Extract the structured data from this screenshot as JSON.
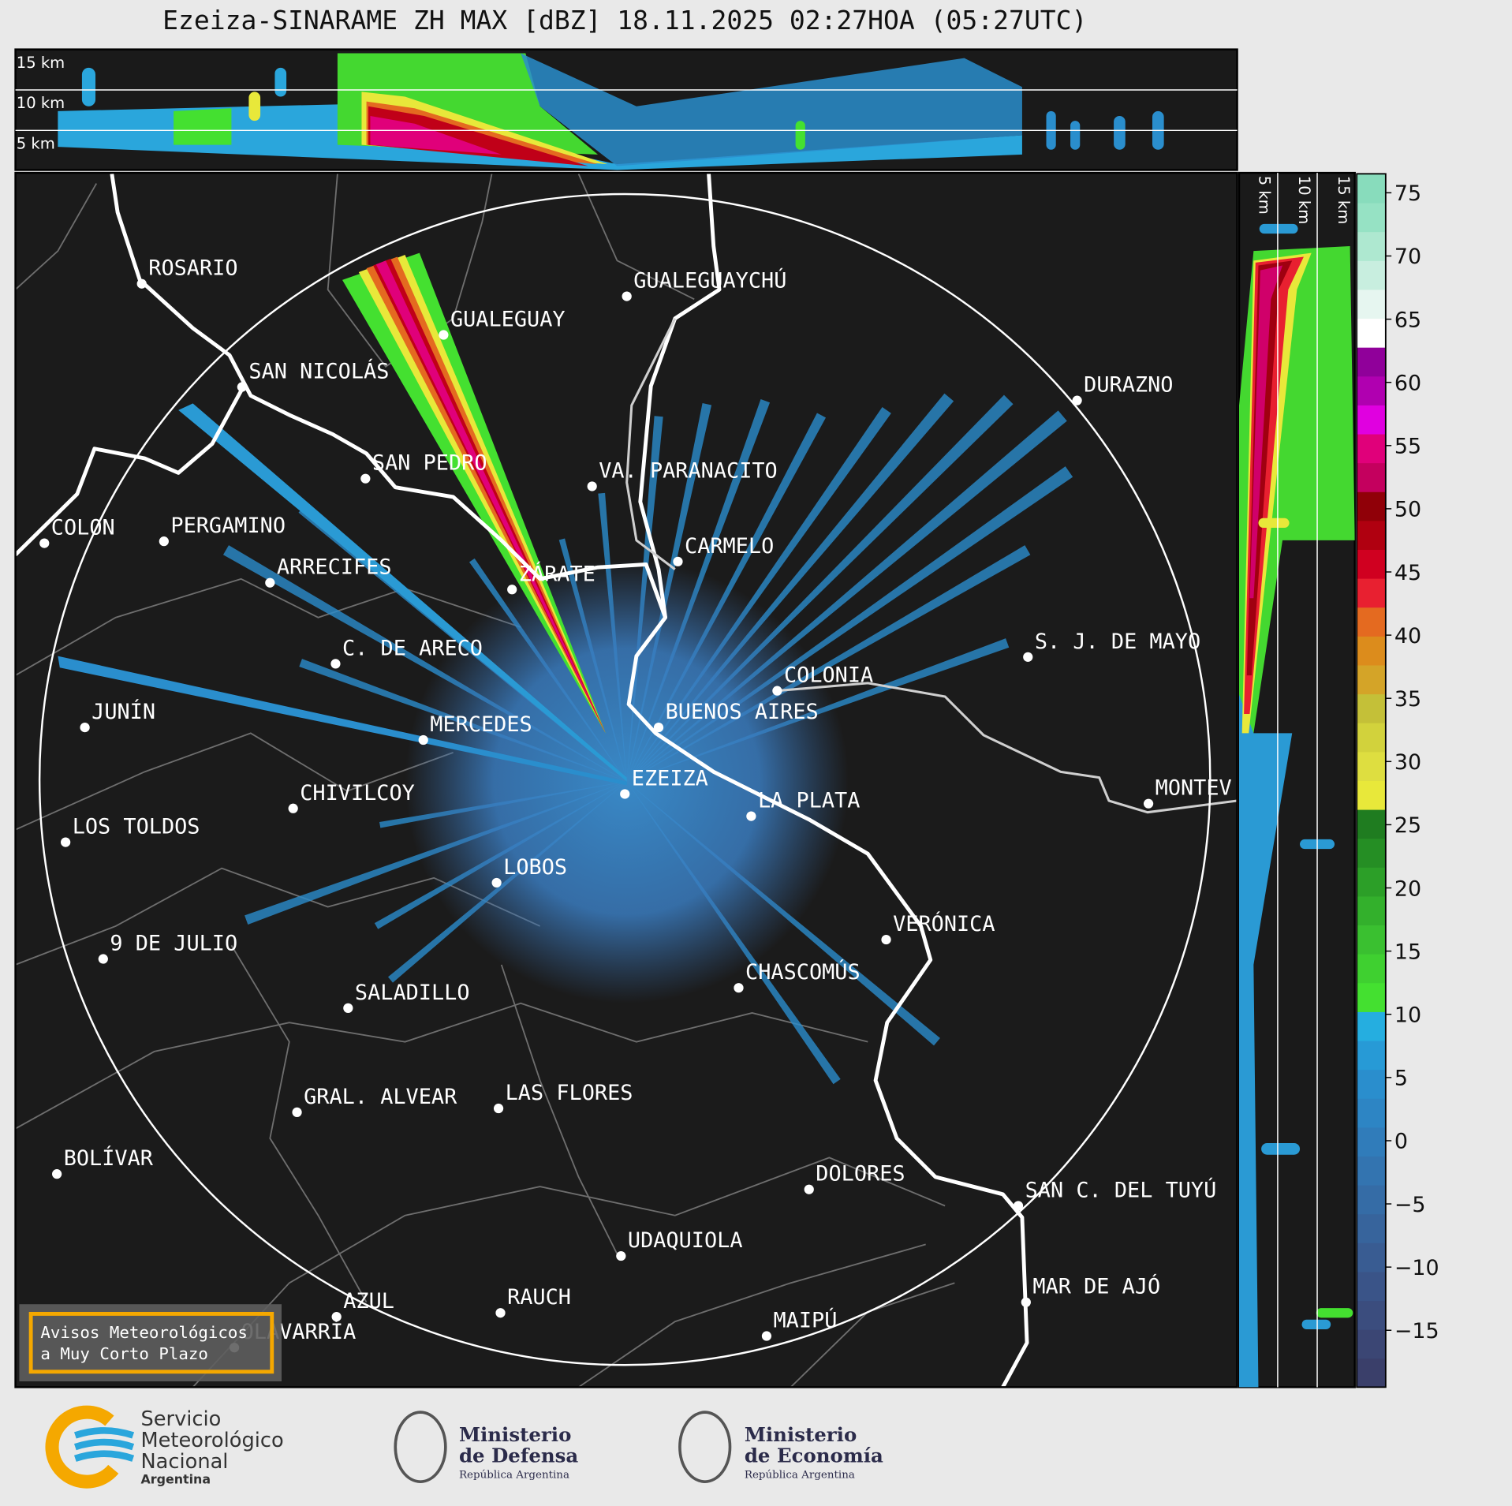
{
  "title": "Ezeiza-SINARAME ZH MAX [dBZ] 18.11.2025 02:27HOA (05:27UTC)",
  "top_altitude_labels": [
    "15 km",
    "10 km",
    "5 km"
  ],
  "side_altitude_labels": [
    "5 km",
    "10 km",
    "15 km"
  ],
  "cities": [
    "ROSARIO",
    "GUALEGUAYCHÚ",
    "GUALEGUAY",
    "SAN NICOLÁS",
    "DURAZNO",
    "SAN PEDRO",
    "VA. PARANACITO",
    "COLON",
    "PERGAMINO",
    "CARMELO",
    "ARRECIFES",
    "ZÁRATE",
    "S. J. DE MAYO",
    "C. DE ARECO",
    "COLONIA",
    "BUENOS AIRES",
    "JUNÍN",
    "MERCEDES",
    "EZEIZA",
    "MONTEV",
    "LA PLATA",
    "CHIVILCOY",
    "LOS TOLDOS",
    "LOBOS",
    "VERÓNICA",
    "9 DE JULIO",
    "CHASCOMÚS",
    "SALADILLO",
    "GRAL. ALVEAR",
    "LAS FLORES",
    "BOLÍVAR",
    "DOLORES",
    "SAN C. DEL TUYÚ",
    "UDAQUIOLA",
    "MAR DE AJÓ",
    "AZUL",
    "RAUCH",
    "OLAVARRÍA",
    "MAIPÚ"
  ],
  "colorbar": {
    "lim": [
      -19.5,
      76.5
    ],
    "ticks": [
      75,
      70,
      65,
      60,
      55,
      50,
      45,
      40,
      35,
      30,
      25,
      20,
      15,
      10,
      5,
      0,
      {
        "value": -5,
        "label": "−5"
      },
      {
        "value": -10,
        "label": "−10"
      },
      {
        "value": -15,
        "label": "−15"
      }
    ],
    "colors": [
      "#3a3f6a",
      "#3b4674",
      "#3b4d7e",
      "#3a5488",
      "#395c92",
      "#37649c",
      "#356ca6",
      "#3374b0",
      "#307cba",
      "#2d85c4",
      "#2a8ecd",
      "#279ad6",
      "#25aee0",
      "#44e030",
      "#3fd030",
      "#3ac030",
      "#33b02c",
      "#2c9f28",
      "#258e24",
      "#1f7c20",
      "#e8e83a",
      "#dede40",
      "#d2d23c",
      "#c4c038",
      "#d4a428",
      "#dc8c1c",
      "#e46a20",
      "#e82030",
      "#d00020",
      "#b00010",
      "#900008",
      "#c4005e",
      "#e0007a",
      "#e000e0",
      "#b000b0",
      "#90009a",
      "#ffffff",
      "#e6f6f0",
      "#c8eedf",
      "#aee8d0",
      "#96e2c4",
      "#88dcbc"
    ]
  },
  "notice": [
    "Avisos Meteorológicos",
    "a Muy Corto Plazo"
  ],
  "logos": {
    "smn": [
      "Servicio",
      "Meteorológico",
      "Nacional",
      "Argentina"
    ],
    "defensa": [
      "Ministerio",
      "de Defensa",
      "República Argentina"
    ],
    "economia": [
      "Ministerio",
      "de Economía",
      "República Argentina"
    ]
  }
}
